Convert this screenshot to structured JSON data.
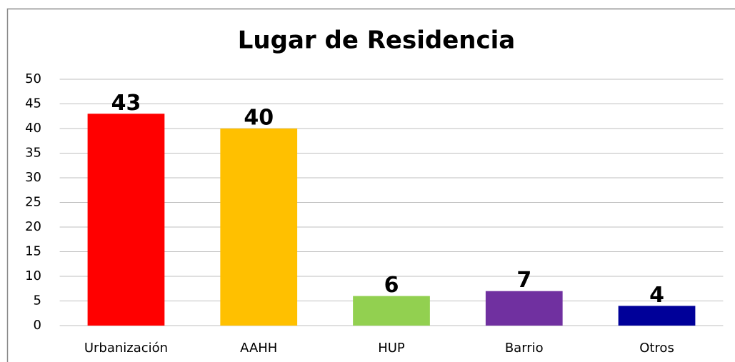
{
  "chart_data": {
    "type": "bar",
    "title": "Lugar de Residencia",
    "categories": [
      "Urbanización",
      "AAHH",
      "HUP",
      "Barrio",
      "Otros"
    ],
    "values": [
      43,
      40,
      6,
      7,
      4
    ],
    "colors": [
      "#ff0000",
      "#ffc000",
      "#92d050",
      "#7030a0",
      "#000099"
    ],
    "ylim": [
      0,
      50
    ],
    "yticks": [
      0,
      5,
      10,
      15,
      20,
      25,
      30,
      35,
      40,
      45,
      50
    ],
    "grid": true
  }
}
